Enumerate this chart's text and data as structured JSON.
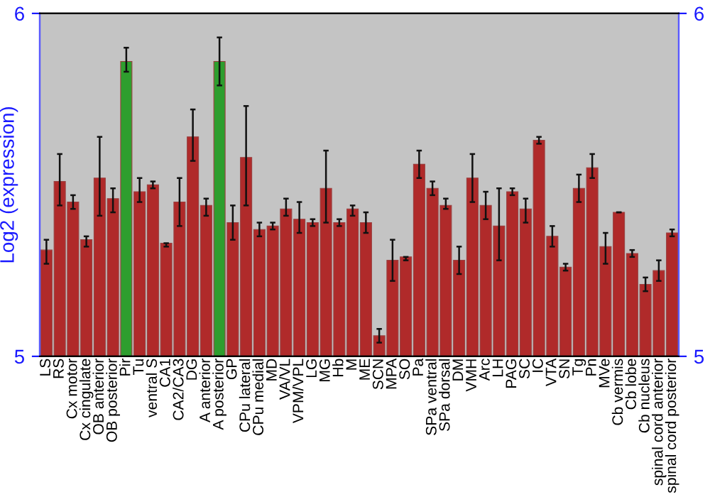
{
  "chart_data": {
    "type": "bar",
    "ylabel": "Log2 (expression)",
    "categories": [
      "LS",
      "RS",
      "Cx motor",
      "Cx cingulate",
      "OB anterior",
      "OB posterior",
      "Pir",
      "Tu",
      "ventral S",
      "CA1",
      "CA2/CA3",
      "DG",
      "A anterior",
      "A posterior",
      "GP",
      "CPu lateral",
      "CPu medial",
      "MD",
      "VA/VL",
      "VPM/VPL",
      "LG",
      "MG",
      "Hb",
      "M",
      "ME",
      "SCN",
      "MPA",
      "SO",
      "Pa",
      "SPa ventral",
      "SPa dorsal",
      "DM",
      "VMH",
      "Arc",
      "LH",
      "PAG",
      "SC",
      "IC",
      "VTA",
      "SN",
      "Tg",
      "Pn",
      "MVe",
      "Cb vermis",
      "Cb lobe",
      "Cb nucleus",
      "spinal cord anterior",
      "spinal cord posterior"
    ],
    "values": [
      5.31,
      5.51,
      5.45,
      5.34,
      5.52,
      5.46,
      5.86,
      5.48,
      5.5,
      5.33,
      5.45,
      5.64,
      5.44,
      5.86,
      5.39,
      5.58,
      5.37,
      5.38,
      5.43,
      5.4,
      5.39,
      5.49,
      5.39,
      5.43,
      5.39,
      5.06,
      5.28,
      5.29,
      5.56,
      5.49,
      5.44,
      5.28,
      5.52,
      5.44,
      5.38,
      5.48,
      5.43,
      5.63,
      5.35,
      5.26,
      5.49,
      5.55,
      5.32,
      5.42,
      5.3,
      5.21,
      5.25,
      5.36
    ],
    "errors": [
      [
        5.27,
        5.34
      ],
      [
        5.44,
        5.59
      ],
      [
        5.43,
        5.47
      ],
      [
        5.32,
        5.35
      ],
      [
        5.41,
        5.64
      ],
      [
        5.42,
        5.49
      ],
      [
        5.83,
        5.9
      ],
      [
        5.45,
        5.52
      ],
      [
        5.49,
        5.51
      ],
      [
        5.32,
        5.33
      ],
      [
        5.38,
        5.52
      ],
      [
        5.57,
        5.72
      ],
      [
        5.41,
        5.46
      ],
      [
        5.79,
        5.93
      ],
      [
        5.34,
        5.44
      ],
      [
        5.44,
        5.73
      ],
      [
        5.35,
        5.39
      ],
      [
        5.37,
        5.39
      ],
      [
        5.41,
        5.46
      ],
      [
        5.36,
        5.45
      ],
      [
        5.38,
        5.4
      ],
      [
        5.39,
        5.6
      ],
      [
        5.38,
        5.4
      ],
      [
        5.41,
        5.44
      ],
      [
        5.36,
        5.42
      ],
      [
        5.04,
        5.08
      ],
      [
        5.22,
        5.34
      ],
      [
        5.28,
        5.29
      ],
      [
        5.52,
        5.6
      ],
      [
        5.47,
        5.51
      ],
      [
        5.43,
        5.46
      ],
      [
        5.24,
        5.32
      ],
      [
        5.45,
        5.59
      ],
      [
        5.4,
        5.48
      ],
      [
        5.28,
        5.49
      ],
      [
        5.47,
        5.49
      ],
      [
        5.39,
        5.46
      ],
      [
        5.62,
        5.64
      ],
      [
        5.32,
        5.38
      ],
      [
        5.25,
        5.27
      ],
      [
        5.45,
        5.53
      ],
      [
        5.52,
        5.59
      ],
      [
        5.27,
        5.36
      ],
      [
        5.42,
        5.42
      ],
      [
        5.29,
        5.31
      ],
      [
        5.19,
        5.23
      ],
      [
        5.22,
        5.28
      ],
      [
        5.35,
        5.37
      ]
    ],
    "colors": [
      "#b02a2a",
      "#b02a2a",
      "#b02a2a",
      "#b02a2a",
      "#b02a2a",
      "#b02a2a",
      "#2e9e2e",
      "#b02a2a",
      "#b02a2a",
      "#b02a2a",
      "#b02a2a",
      "#b02a2a",
      "#b02a2a",
      "#2e9e2e",
      "#b02a2a",
      "#b02a2a",
      "#b02a2a",
      "#b02a2a",
      "#b02a2a",
      "#b02a2a",
      "#b02a2a",
      "#b02a2a",
      "#b02a2a",
      "#b02a2a",
      "#b02a2a",
      "#b02a2a",
      "#b02a2a",
      "#b02a2a",
      "#b02a2a",
      "#b02a2a",
      "#b02a2a",
      "#b02a2a",
      "#b02a2a",
      "#b02a2a",
      "#b02a2a",
      "#b02a2a",
      "#b02a2a",
      "#b02a2a",
      "#b02a2a",
      "#b02a2a",
      "#b02a2a",
      "#b02a2a",
      "#b02a2a",
      "#b02a2a",
      "#b02a2a",
      "#b02a2a",
      "#b02a2a",
      "#b02a2a"
    ],
    "ylim": [
      5,
      6
    ],
    "yticks": [
      5,
      6
    ],
    "y2lim": [
      5,
      6
    ],
    "y2ticks": [
      5,
      6
    ],
    "grid": false,
    "legend": false
  }
}
